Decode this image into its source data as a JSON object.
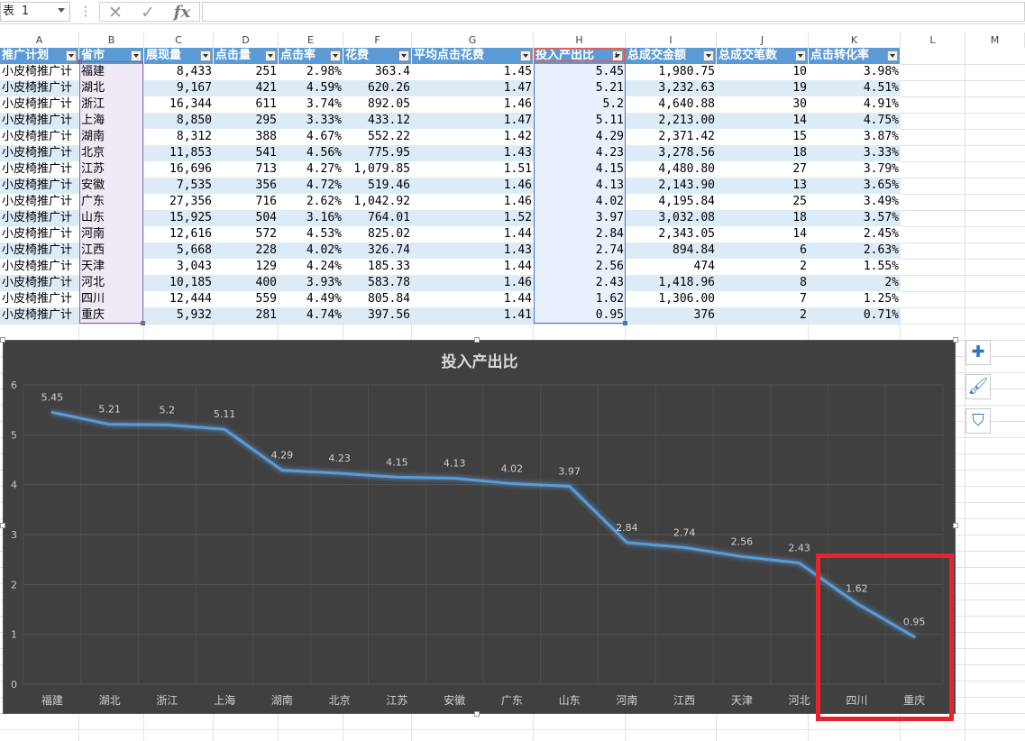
{
  "formula_bar": {
    "name_box": "表 1",
    "dots": "⋮",
    "cancel_glyph": "✕",
    "enter_glyph": "✓",
    "fx_label": "fx",
    "formula": ""
  },
  "columns": [
    "A",
    "B",
    "C",
    "D",
    "E",
    "F",
    "G",
    "H",
    "I",
    "J",
    "K",
    "L",
    "M"
  ],
  "table": {
    "headers": [
      "推广计划",
      "省市",
      "展现量",
      "点击量",
      "点击率",
      "花费",
      "平均点击花费",
      "投入产出比",
      "总成交金额",
      "总成交笔数",
      "点击转化率"
    ],
    "rows": [
      [
        "小皮椅推广计",
        "福建",
        "8,433",
        "251",
        "2.98%",
        "363.4",
        "1.45",
        "5.45",
        "1,980.75",
        "10",
        "3.98%"
      ],
      [
        "小皮椅推广计",
        "湖北",
        "9,167",
        "421",
        "4.59%",
        "620.26",
        "1.47",
        "5.21",
        "3,232.63",
        "19",
        "4.51%"
      ],
      [
        "小皮椅推广计",
        "浙江",
        "16,344",
        "611",
        "3.74%",
        "892.05",
        "1.46",
        "5.2",
        "4,640.88",
        "30",
        "4.91%"
      ],
      [
        "小皮椅推广计",
        "上海",
        "8,850",
        "295",
        "3.33%",
        "433.12",
        "1.47",
        "5.11",
        "2,213.00",
        "14",
        "4.75%"
      ],
      [
        "小皮椅推广计",
        "湖南",
        "8,312",
        "388",
        "4.67%",
        "552.22",
        "1.42",
        "4.29",
        "2,371.42",
        "15",
        "3.87%"
      ],
      [
        "小皮椅推广计",
        "北京",
        "11,853",
        "541",
        "4.56%",
        "775.95",
        "1.43",
        "4.23",
        "3,278.56",
        "18",
        "3.33%"
      ],
      [
        "小皮椅推广计",
        "江苏",
        "16,696",
        "713",
        "4.27%",
        "1,079.85",
        "1.51",
        "4.15",
        "4,480.80",
        "27",
        "3.79%"
      ],
      [
        "小皮椅推广计",
        "安徽",
        "7,535",
        "356",
        "4.72%",
        "519.46",
        "1.46",
        "4.13",
        "2,143.90",
        "13",
        "3.65%"
      ],
      [
        "小皮椅推广计",
        "广东",
        "27,356",
        "716",
        "2.62%",
        "1,042.92",
        "1.46",
        "4.02",
        "4,195.84",
        "25",
        "3.49%"
      ],
      [
        "小皮椅推广计",
        "山东",
        "15,925",
        "504",
        "3.16%",
        "764.01",
        "1.52",
        "3.97",
        "3,032.08",
        "18",
        "3.57%"
      ],
      [
        "小皮椅推广计",
        "河南",
        "12,616",
        "572",
        "4.53%",
        "825.02",
        "1.44",
        "2.84",
        "2,343.05",
        "14",
        "2.45%"
      ],
      [
        "小皮椅推广计",
        "江西",
        "5,668",
        "228",
        "4.02%",
        "326.74",
        "1.43",
        "2.74",
        "894.84",
        "6",
        "2.63%"
      ],
      [
        "小皮椅推广计",
        "天津",
        "3,043",
        "129",
        "4.24%",
        "185.33",
        "1.44",
        "2.56",
        "474",
        "2",
        "1.55%"
      ],
      [
        "小皮椅推广计",
        "河北",
        "10,185",
        "400",
        "3.93%",
        "583.78",
        "1.46",
        "2.43",
        "1,418.96",
        "8",
        "2%"
      ],
      [
        "小皮椅推广计",
        "四川",
        "12,444",
        "559",
        "4.49%",
        "805.84",
        "1.44",
        "1.62",
        "1,306.00",
        "7",
        "1.25%"
      ],
      [
        "小皮椅推广计",
        "重庆",
        "5,932",
        "281",
        "4.74%",
        "397.56",
        "1.41",
        "0.95",
        "376",
        "2",
        "0.71%"
      ]
    ]
  },
  "side_buttons": [
    {
      "name": "chart-elements-button",
      "glyph": "✚"
    },
    {
      "name": "chart-styles-button",
      "glyph": "🖌"
    },
    {
      "name": "chart-filters-button",
      "glyph": "⛉"
    }
  ],
  "chart_data": {
    "type": "line",
    "title": "投入产出比",
    "categories": [
      "福建",
      "湖北",
      "浙江",
      "上海",
      "湖南",
      "北京",
      "江苏",
      "安徽",
      "广东",
      "山东",
      "河南",
      "江西",
      "天津",
      "河北",
      "四川",
      "重庆"
    ],
    "series": [
      {
        "values": [
          5.45,
          5.21,
          5.2,
          5.11,
          4.29,
          4.23,
          4.15,
          4.13,
          4.02,
          3.97,
          2.84,
          2.74,
          2.56,
          2.43,
          1.62,
          0.95
        ]
      }
    ],
    "data_labels": [
      "5.45",
      "5.21",
      "5.2",
      "5.11",
      "4.29",
      "4.23",
      "4.15",
      "4.13",
      "4.02",
      "3.97",
      "2.84",
      "2.74",
      "2.56",
      "2.43",
      "1.62",
      "0.95"
    ],
    "y_ticks": [
      "0",
      "1",
      "2",
      "3",
      "4",
      "5",
      "6"
    ],
    "ylim": [
      0,
      6
    ],
    "grid": true,
    "background": "#404040",
    "line_color": "#5b9bd5",
    "highlight_color": "#e8232c"
  }
}
